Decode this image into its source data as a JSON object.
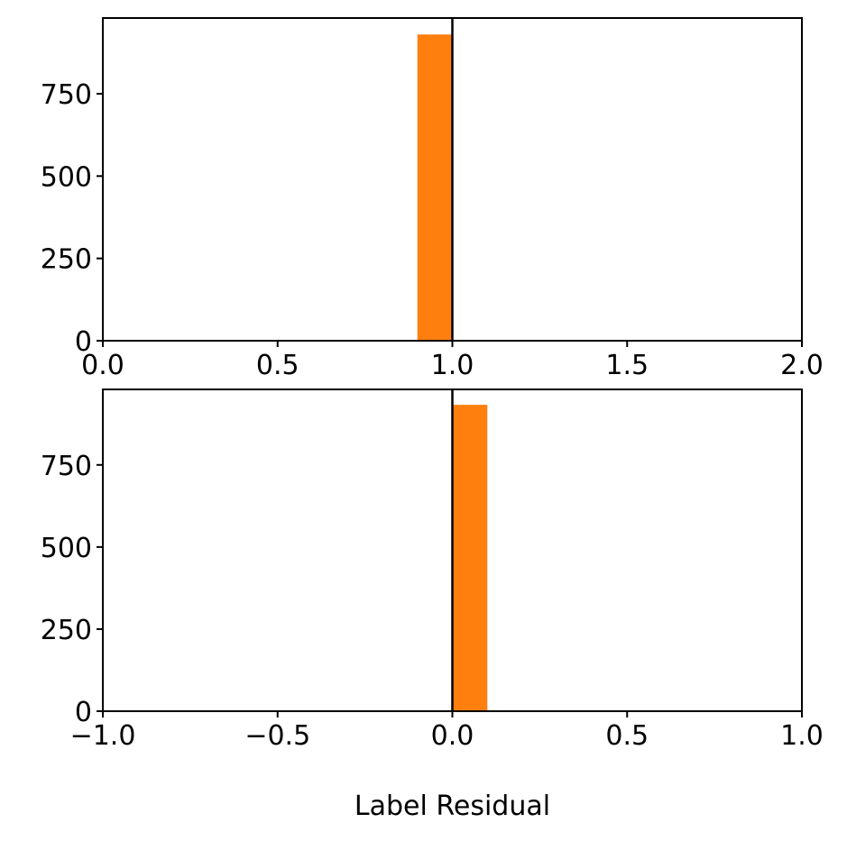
{
  "chart_data": [
    {
      "type": "bar",
      "title": "",
      "xlabel": "",
      "ylabel": "",
      "xlim": [
        0.0,
        2.0
      ],
      "ylim": [
        0,
        980
      ],
      "xticks": [
        0.0,
        0.5,
        1.0,
        1.5,
        2.0
      ],
      "xtick_labels": [
        "0.0",
        "0.5",
        "1.0",
        "1.5",
        "2.0"
      ],
      "yticks": [
        0,
        250,
        500,
        750
      ],
      "ytick_labels": [
        "0",
        "250",
        "500",
        "750"
      ],
      "bins": [
        {
          "x0": 0.9,
          "x1": 1.0,
          "count": 930
        }
      ],
      "reference_line_x": 1.0,
      "bar_color": "#ff7f0e",
      "grid": false
    },
    {
      "type": "bar",
      "title": "",
      "xlabel": "Label Residual",
      "ylabel": "",
      "xlim": [
        -1.0,
        1.0
      ],
      "ylim": [
        0,
        980
      ],
      "xticks": [
        -1.0,
        -0.5,
        0.0,
        0.5,
        1.0
      ],
      "xtick_labels": [
        "−1.0",
        "−0.5",
        "0.0",
        "0.5",
        "1.0"
      ],
      "yticks": [
        0,
        250,
        500,
        750
      ],
      "ytick_labels": [
        "0",
        "250",
        "500",
        "750"
      ],
      "bins": [
        {
          "x0": 0.0,
          "x1": 0.1,
          "count": 933
        }
      ],
      "reference_line_x": 0.0,
      "bar_color": "#ff7f0e",
      "grid": false
    }
  ]
}
